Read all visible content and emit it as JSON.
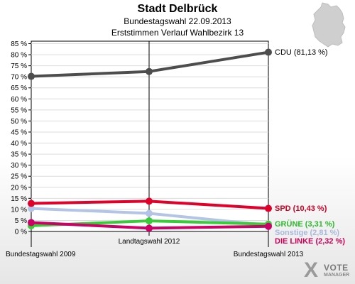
{
  "header": {
    "title": "Stadt Delbrück",
    "subtitle1": "Bundestagswahl 22.09.2013",
    "subtitle2": "Erststimmen Verlauf Wahlbezirk 13"
  },
  "logo": {
    "mark": "X",
    "line1": "VOTE",
    "line2": "MANAGER"
  },
  "chart_data": {
    "type": "line",
    "x": [
      "Bundestagswahl 2009",
      "Landtagswahl 2012",
      "Bundestagswahl 2013"
    ],
    "ylim": [
      0,
      87
    ],
    "yticks": [
      0,
      5,
      10,
      15,
      20,
      25,
      30,
      35,
      40,
      45,
      50,
      55,
      60,
      65,
      70,
      75,
      80,
      85
    ],
    "ytick_suffix": " %",
    "grid": true,
    "legend": "end-labels",
    "series": [
      {
        "name": "CDU",
        "values": [
          70.2,
          72.4,
          81.13
        ],
        "color": "#4d4d4d",
        "label": "CDU (81,13 %)"
      },
      {
        "name": "Sonstige",
        "values": [
          10.4,
          8.2,
          2.81
        ],
        "color": "#b4c4e6",
        "label": "Sonstige (2,81 %)"
      },
      {
        "name": "GRÜNE",
        "values": [
          2.6,
          4.8,
          3.31
        ],
        "color": "#39cc39",
        "label": "GRÜNE (3,31 %)"
      },
      {
        "name": "DIE LINKE",
        "values": [
          4.0,
          1.5,
          2.32
        ],
        "color": "#cc0066",
        "label": "DIE LINKE (2,32 %)"
      },
      {
        "name": "SPD",
        "values": [
          12.7,
          13.7,
          10.43
        ],
        "color": "#e0002a",
        "label": "SPD (10,43 %)"
      }
    ]
  }
}
